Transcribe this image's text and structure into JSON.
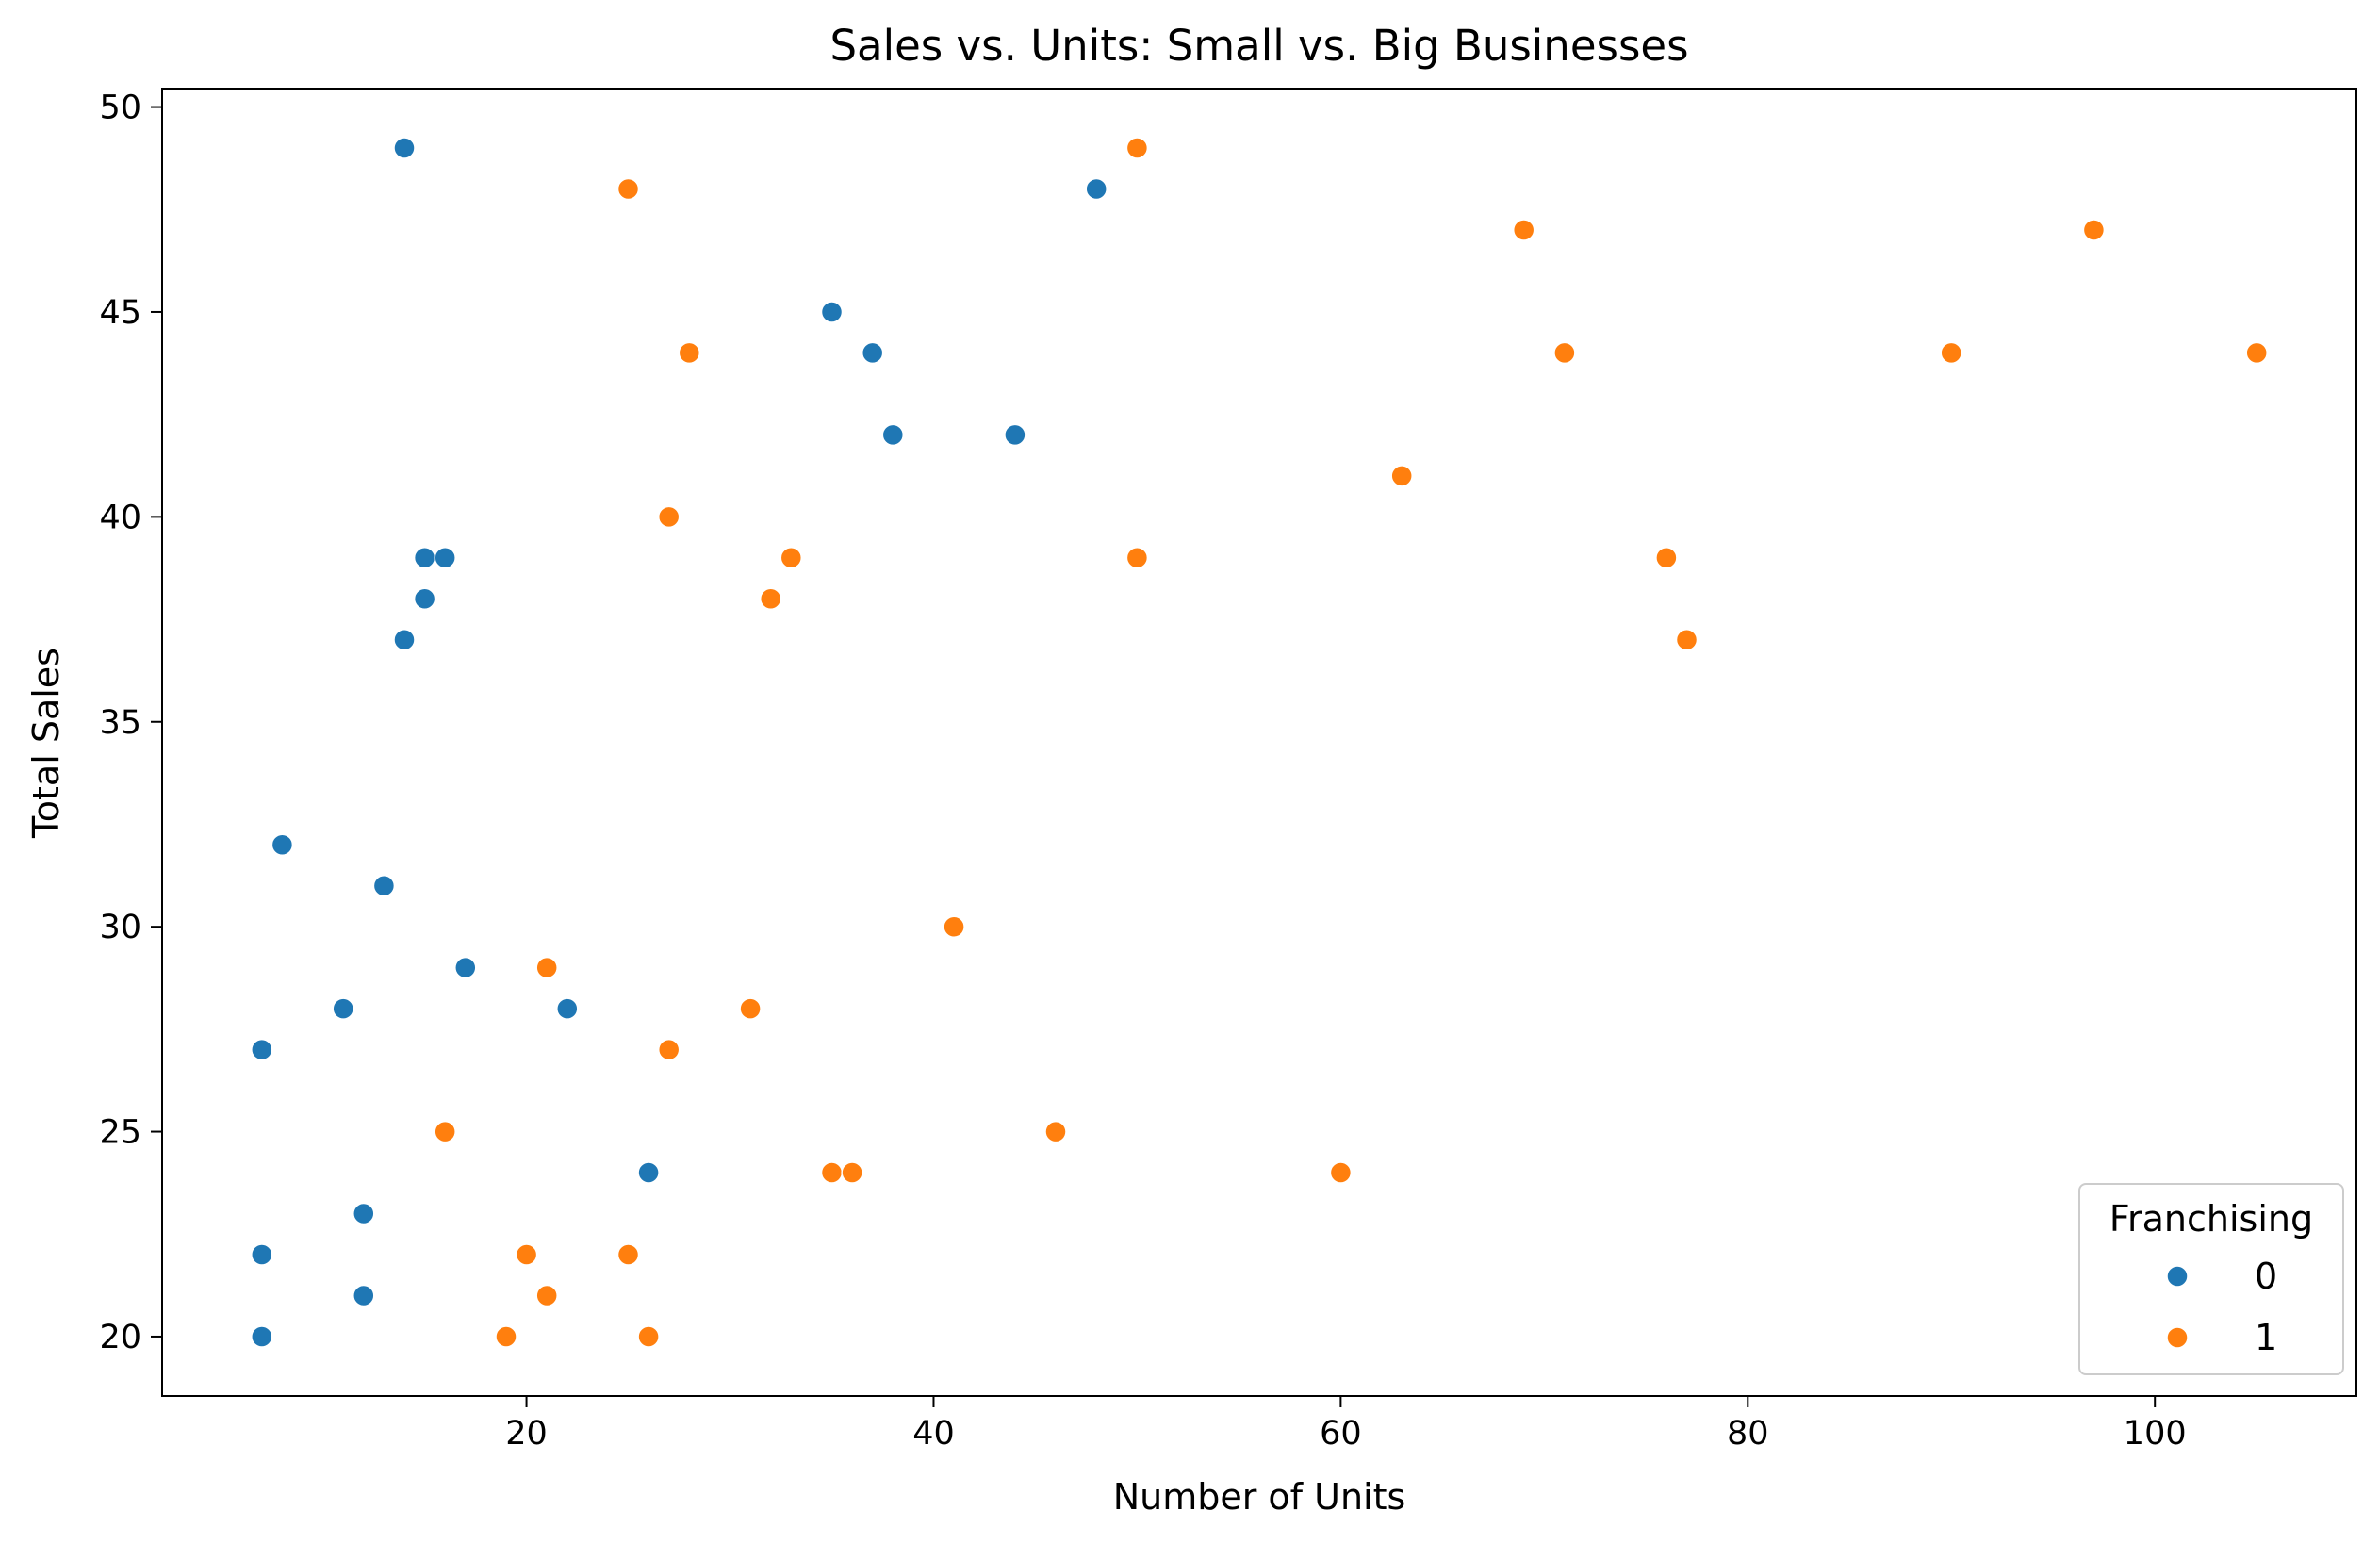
{
  "chart_data": {
    "type": "scatter",
    "title": "Sales vs. Units: Small vs. Big Businesses",
    "xlabel": "Number of Units",
    "ylabel": "Total Sales",
    "xlim": [
      2.1,
      109.9
    ],
    "ylim": [
      18.55,
      50.45
    ],
    "xticks": [
      20,
      40,
      60,
      80,
      100
    ],
    "yticks": [
      20,
      25,
      30,
      35,
      40,
      45,
      50
    ],
    "grid": false,
    "legend": {
      "title": "Franchising",
      "placement": "lower-right"
    },
    "series": [
      {
        "name": "0",
        "color": "#1f77b4",
        "points": [
          [
            14,
            49
          ],
          [
            48,
            48
          ],
          [
            35,
            45
          ],
          [
            37,
            44
          ],
          [
            38,
            42
          ],
          [
            44,
            42
          ],
          [
            15,
            39
          ],
          [
            16,
            39
          ],
          [
            15,
            38
          ],
          [
            14,
            37
          ],
          [
            8,
            32
          ],
          [
            13,
            31
          ],
          [
            17,
            29
          ],
          [
            11,
            28
          ],
          [
            22,
            28
          ],
          [
            7,
            27
          ],
          [
            26,
            24
          ],
          [
            12,
            23
          ],
          [
            7,
            22
          ],
          [
            12,
            21
          ],
          [
            7,
            20
          ]
        ]
      },
      {
        "name": "1",
        "color": "#ff7f0e",
        "points": [
          [
            50,
            49
          ],
          [
            25,
            48
          ],
          [
            69,
            47
          ],
          [
            97,
            47
          ],
          [
            28,
            44
          ],
          [
            71,
            44
          ],
          [
            90,
            44
          ],
          [
            105,
            44
          ],
          [
            63,
            41
          ],
          [
            27,
            40
          ],
          [
            33,
            39
          ],
          [
            50,
            39
          ],
          [
            76,
            39
          ],
          [
            32,
            38
          ],
          [
            77,
            37
          ],
          [
            41,
            30
          ],
          [
            21,
            29
          ],
          [
            31,
            28
          ],
          [
            27,
            27
          ],
          [
            16,
            25
          ],
          [
            46,
            25
          ],
          [
            35,
            24
          ],
          [
            36,
            24
          ],
          [
            60,
            24
          ],
          [
            20,
            22
          ],
          [
            25,
            22
          ],
          [
            21,
            21
          ],
          [
            19,
            20
          ],
          [
            26,
            20
          ]
        ]
      }
    ]
  }
}
